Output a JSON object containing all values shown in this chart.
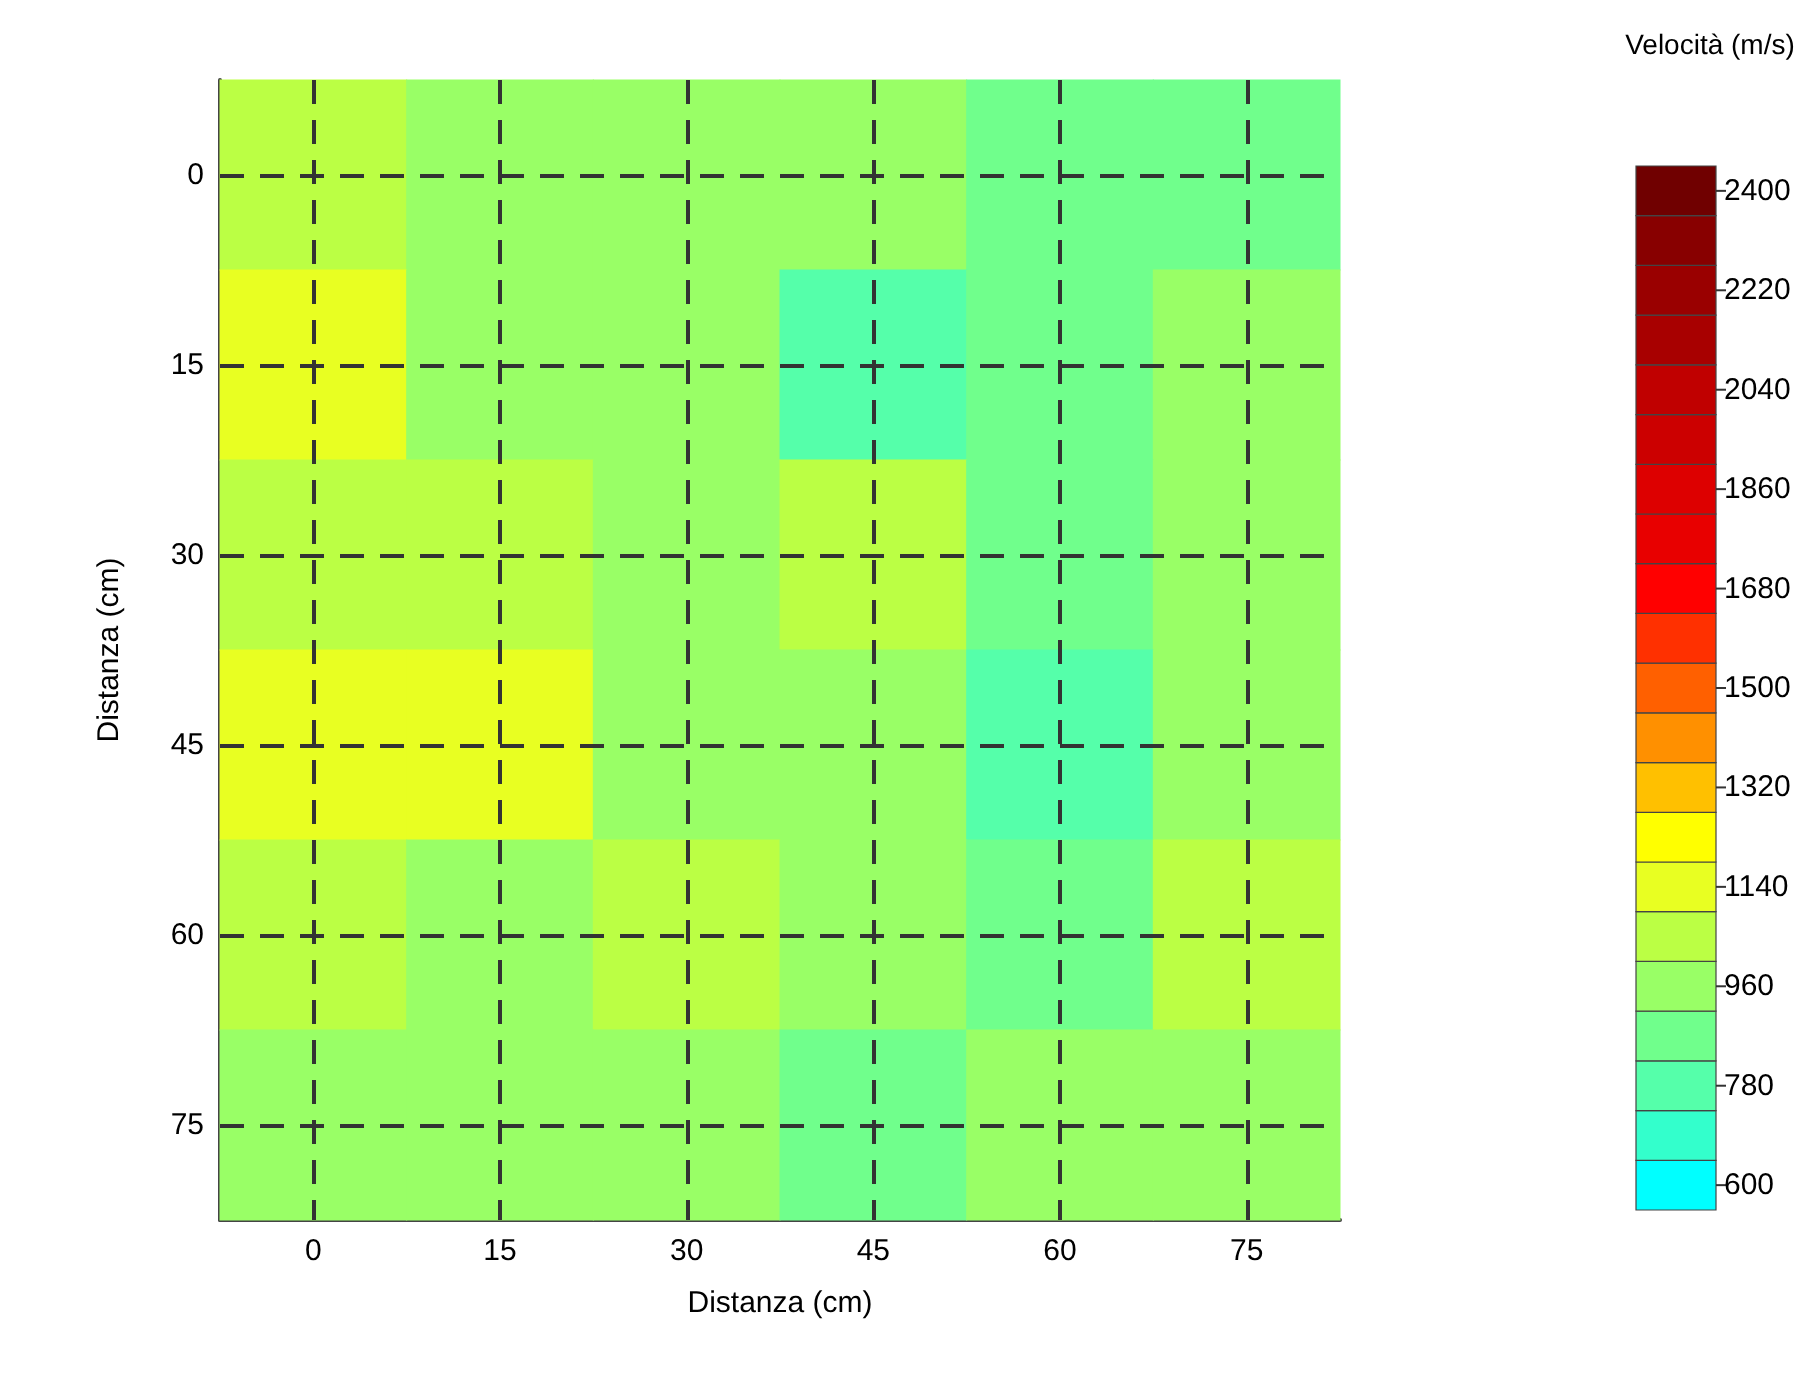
{
  "chart_data": {
    "type": "heatmap",
    "xlabel": "Distanza (cm)",
    "ylabel": "Distanza (cm)",
    "clabel": "Velocità (m/s)",
    "categories": [
      "0",
      "15",
      "30",
      "45",
      "60",
      "75"
    ],
    "y_categories": [
      "0",
      "15",
      "30",
      "45",
      "60",
      "75"
    ],
    "cells": [
      [
        1050,
        960,
        960,
        960,
        870,
        870
      ],
      [
        1140,
        960,
        960,
        780,
        870,
        960
      ],
      [
        1050,
        1050,
        960,
        1050,
        870,
        960
      ],
      [
        1140,
        1140,
        960,
        960,
        780,
        960
      ],
      [
        1050,
        960,
        1050,
        960,
        870,
        1050
      ],
      [
        960,
        960,
        960,
        870,
        960,
        960
      ]
    ],
    "clim": [
      555,
      2445
    ],
    "cticks": [
      600,
      780,
      960,
      1140,
      1320,
      1500,
      1680,
      1860,
      2040,
      2220,
      2400
    ],
    "grid": true
  }
}
